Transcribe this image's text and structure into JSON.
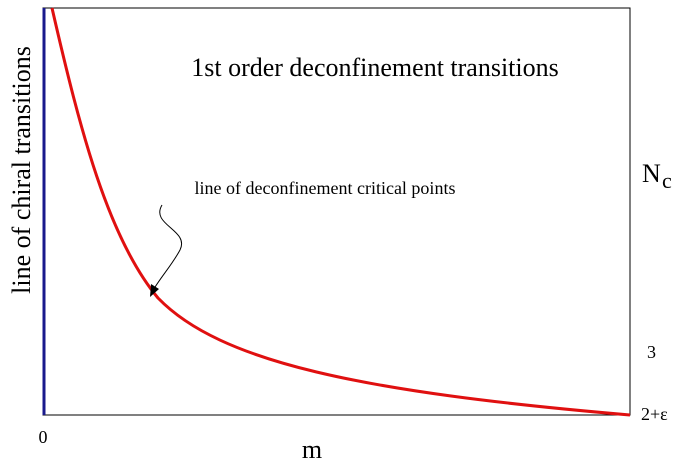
{
  "title": "1st order deconfinement transitions",
  "curve_label": "line of deconfinement critical points",
  "left_label": "line of chiral transitions",
  "right_axis": {
    "symbol": "N",
    "subscript": "c",
    "tick_upper": "3",
    "tick_lower": "2+ε"
  },
  "bottom_axis": {
    "origin": "0",
    "label": "m"
  }
}
